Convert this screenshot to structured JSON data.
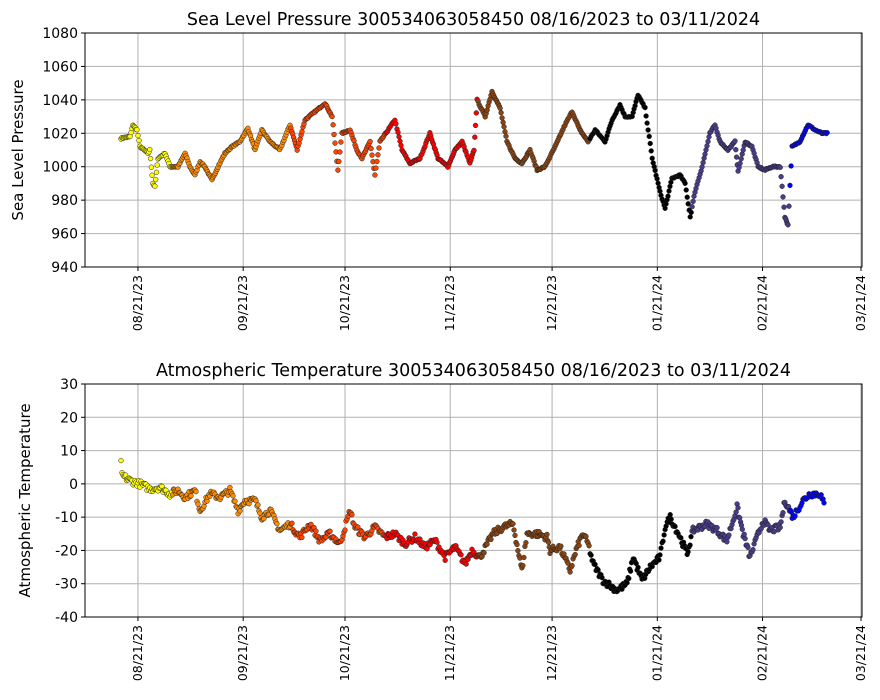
{
  "chart_data": [
    {
      "type": "scatter",
      "title": "Sea Level Pressure 300534063058450  08/16/2023 to 03/11/2024",
      "xlabel": "",
      "ylabel": "Sea Level Pressure",
      "x_units": "days since 08/16/2023",
      "xlim": [
        -10.6,
        218.3
      ],
      "ylim": [
        940,
        1080
      ],
      "yticks": [
        940,
        960,
        980,
        1000,
        1020,
        1040,
        1060,
        1080
      ],
      "xticks": [
        {
          "day": 5,
          "label": "08/21/23"
        },
        {
          "day": 36,
          "label": "09/21/23"
        },
        {
          "day": 66,
          "label": "10/21/23"
        },
        {
          "day": 97,
          "label": "11/21/23"
        },
        {
          "day": 127,
          "label": "12/21/23"
        },
        {
          "day": 158,
          "label": "01/21/24"
        },
        {
          "day": 189,
          "label": "02/21/24"
        },
        {
          "day": 218,
          "label": "03/21/24"
        }
      ],
      "grid": true,
      "noise": 0.8,
      "points": [
        [
          0,
          1017
        ],
        [
          2.7,
          1018
        ],
        [
          3.5,
          1025
        ],
        [
          4.7,
          1022
        ],
        [
          5.6,
          1012
        ],
        [
          8,
          1008
        ],
        [
          8.5,
          1010
        ],
        [
          9.4,
          990
        ],
        [
          10,
          988
        ],
        [
          10.9,
          1005
        ],
        [
          13,
          1008
        ],
        [
          14.4,
          1000
        ],
        [
          16.8,
          1000
        ],
        [
          18.9,
          1008
        ],
        [
          20.3,
          1000
        ],
        [
          21.8,
          995
        ],
        [
          23.3,
          1003
        ],
        [
          24.7,
          1000
        ],
        [
          26.8,
          992
        ],
        [
          28.6,
          1000
        ],
        [
          30.6,
          1008
        ],
        [
          32.7,
          1012
        ],
        [
          35,
          1015
        ],
        [
          37.4,
          1023
        ],
        [
          39.5,
          1010
        ],
        [
          41.5,
          1022
        ],
        [
          43.9,
          1015
        ],
        [
          46.8,
          1010
        ],
        [
          49.8,
          1025
        ],
        [
          51.9,
          1010
        ],
        [
          54.2,
          1028
        ],
        [
          57.2,
          1033
        ],
        [
          60.1,
          1038
        ],
        [
          62.2,
          1030
        ],
        [
          63.9,
          998
        ],
        [
          65.1,
          1020
        ],
        [
          67.5,
          1022
        ],
        [
          69.5,
          1010
        ],
        [
          71,
          1005
        ],
        [
          73.4,
          1015
        ],
        [
          74.8,
          995
        ],
        [
          76.3,
          1015
        ],
        [
          78.7,
          1022
        ],
        [
          80.7,
          1028
        ],
        [
          82.8,
          1010
        ],
        [
          85.1,
          1002
        ],
        [
          88.1,
          1005
        ],
        [
          91,
          1020
        ],
        [
          93.4,
          1005
        ],
        [
          96.3,
          1000
        ],
        [
          98.4,
          1010
        ],
        [
          100.5,
          1015
        ],
        [
          102.8,
          1002
        ],
        [
          104,
          1010
        ],
        [
          104.9,
          1040
        ],
        [
          107.3,
          1030
        ],
        [
          109.3,
          1045
        ],
        [
          111.7,
          1035
        ],
        [
          113.7,
          1015
        ],
        [
          116.1,
          1005
        ],
        [
          118.1,
          1002
        ],
        [
          120.5,
          1010
        ],
        [
          122.6,
          998
        ],
        [
          124.9,
          1000
        ],
        [
          127.9,
          1012
        ],
        [
          130.8,
          1025
        ],
        [
          132.9,
          1033
        ],
        [
          135.2,
          1022
        ],
        [
          137.6,
          1015
        ],
        [
          139.7,
          1022
        ],
        [
          142.6,
          1015
        ],
        [
          144.7,
          1028
        ],
        [
          147,
          1037
        ],
        [
          148.5,
          1030
        ],
        [
          150.6,
          1030
        ],
        [
          152.3,
          1043
        ],
        [
          154.4,
          1035
        ],
        [
          156.5,
          1005
        ],
        [
          158.8,
          985
        ],
        [
          160.3,
          975
        ],
        [
          162.3,
          993
        ],
        [
          164.7,
          995
        ],
        [
          166.2,
          990
        ],
        [
          167.7,
          970
        ],
        [
          169.1,
          985
        ],
        [
          171.2,
          1000
        ],
        [
          173.5,
          1020
        ],
        [
          175,
          1025
        ],
        [
          176.5,
          1015
        ],
        [
          178.8,
          1010
        ],
        [
          180.9,
          1015
        ],
        [
          181.8,
          997
        ],
        [
          183.9,
          1015
        ],
        [
          185.9,
          1012
        ],
        [
          187.7,
          1000
        ],
        [
          189.7,
          998
        ],
        [
          191.8,
          1000
        ],
        [
          194.2,
          1000
        ],
        [
          195.6,
          970
        ],
        [
          196.5,
          965
        ],
        [
          197.7,
          1012
        ],
        [
          200,
          1015
        ],
        [
          202.4,
          1025
        ],
        [
          204.5,
          1022
        ],
        [
          206.5,
          1020
        ],
        [
          208.3,
          1020
        ]
      ]
    },
    {
      "type": "scatter",
      "title": "Atmospheric Temperature 300534063058450  08/16/2023 to 03/11/2024",
      "xlabel": "",
      "ylabel": "Atmospheric Temperature",
      "x_units": "days since 08/16/2023",
      "xlim": [
        -10.6,
        218.3
      ],
      "ylim": [
        -40,
        30
      ],
      "yticks": [
        -40,
        -30,
        -20,
        -10,
        0,
        10,
        20,
        30
      ],
      "xticks": [
        {
          "day": 5,
          "label": "08/21/23"
        },
        {
          "day": 36,
          "label": "09/21/23"
        },
        {
          "day": 66,
          "label": "10/21/23"
        },
        {
          "day": 97,
          "label": "11/21/23"
        },
        {
          "day": 127,
          "label": "12/21/23"
        },
        {
          "day": 158,
          "label": "01/21/24"
        },
        {
          "day": 189,
          "label": "02/21/24"
        },
        {
          "day": 218,
          "label": "03/21/24"
        }
      ],
      "grid": true,
      "noise": 2.0,
      "isolated_points": [
        [
          0,
          7
        ]
      ],
      "points": [
        [
          0.3,
          2.5
        ],
        [
          2.7,
          1
        ],
        [
          5.6,
          0
        ],
        [
          8.5,
          -1.5
        ],
        [
          11.5,
          -1
        ],
        [
          14.4,
          -3
        ],
        [
          16.8,
          -2
        ],
        [
          18.9,
          -4
        ],
        [
          21.8,
          -2
        ],
        [
          23.3,
          -8
        ],
        [
          26.2,
          -3
        ],
        [
          29.2,
          -4
        ],
        [
          32.1,
          -2
        ],
        [
          34.5,
          -8
        ],
        [
          36.5,
          -5
        ],
        [
          39.5,
          -5
        ],
        [
          41.5,
          -10
        ],
        [
          43.9,
          -8
        ],
        [
          46.8,
          -14
        ],
        [
          49.8,
          -12
        ],
        [
          52.7,
          -16
        ],
        [
          55.7,
          -12
        ],
        [
          58.6,
          -17
        ],
        [
          61.6,
          -15
        ],
        [
          64.5,
          -18
        ],
        [
          67.5,
          -8
        ],
        [
          68.9,
          -13
        ],
        [
          71.9,
          -16
        ],
        [
          74.8,
          -13
        ],
        [
          77.8,
          -16
        ],
        [
          80.7,
          -15
        ],
        [
          83.7,
          -18
        ],
        [
          86.6,
          -16
        ],
        [
          89.6,
          -19
        ],
        [
          92.5,
          -17
        ],
        [
          95.5,
          -22
        ],
        [
          98.4,
          -19
        ],
        [
          101.4,
          -24
        ],
        [
          103.4,
          -20
        ],
        [
          105.8,
          -22
        ],
        [
          109.6,
          -15
        ],
        [
          112.6,
          -13
        ],
        [
          115.5,
          -12
        ],
        [
          118.1,
          -26
        ],
        [
          119.6,
          -15
        ],
        [
          122.6,
          -15
        ],
        [
          125.5,
          -16
        ],
        [
          126.4,
          -20
        ],
        [
          129.3,
          -19
        ],
        [
          132.3,
          -26
        ],
        [
          134.4,
          -19
        ],
        [
          136.1,
          -15
        ],
        [
          137.6,
          -18
        ],
        [
          139.1,
          -24
        ],
        [
          142,
          -29
        ],
        [
          146.1,
          -32
        ],
        [
          149.1,
          -30
        ],
        [
          150.9,
          -22
        ],
        [
          153.5,
          -29
        ],
        [
          155.9,
          -25
        ],
        [
          158.8,
          -22
        ],
        [
          160.3,
          -13
        ],
        [
          161.8,
          -10
        ],
        [
          164.7,
          -16
        ],
        [
          166.8,
          -21
        ],
        [
          168.5,
          -14
        ],
        [
          172.6,
          -12
        ],
        [
          175.6,
          -14
        ],
        [
          178.5,
          -17
        ],
        [
          181.5,
          -7
        ],
        [
          183.3,
          -15
        ],
        [
          185.3,
          -22
        ],
        [
          187.4,
          -16
        ],
        [
          189.2,
          -11
        ],
        [
          191.2,
          -14
        ],
        [
          194.2,
          -13
        ],
        [
          195.6,
          -5
        ],
        [
          198,
          -10
        ],
        [
          200.9,
          -5
        ],
        [
          203,
          -3
        ],
        [
          206,
          -3
        ],
        [
          207.4,
          -7
        ]
      ]
    }
  ],
  "color_segments": [
    {
      "start_day": 0,
      "end_day": 15,
      "color": "#ffff00"
    },
    {
      "start_day": 15,
      "end_day": 50,
      "color": "#ff8c00"
    },
    {
      "start_day": 50,
      "end_day": 78,
      "color": "#ff4500"
    },
    {
      "start_day": 78,
      "end_day": 105,
      "color": "#ff0000"
    },
    {
      "start_day": 105,
      "end_day": 138,
      "color": "#8b4513"
    },
    {
      "start_day": 138,
      "end_day": 168,
      "color": "#000000"
    },
    {
      "start_day": 168,
      "end_day": 197,
      "color": "#483d8b"
    },
    {
      "start_day": 197,
      "end_day": 210,
      "color": "#0000ff"
    }
  ]
}
